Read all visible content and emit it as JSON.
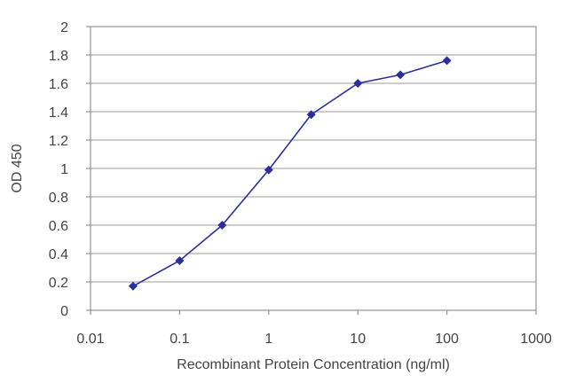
{
  "chart_data": {
    "type": "line",
    "x_scale": "log",
    "xlabel": "Recombinant Protein Concentration (ng/ml)",
    "ylabel": "OD 450",
    "xlim": [
      0.01,
      1000
    ],
    "ylim": [
      0,
      2
    ],
    "x_ticks": [
      0.01,
      0.1,
      1,
      10,
      100,
      1000
    ],
    "x_tick_labels": [
      "0.01",
      "0.1",
      "1",
      "10",
      "100",
      "1000"
    ],
    "y_ticks": [
      0,
      0.2,
      0.4,
      0.6,
      0.8,
      1,
      1.2,
      1.4,
      1.6,
      1.8,
      2
    ],
    "y_tick_labels": [
      "0",
      "0.2",
      "0.4",
      "0.6",
      "0.8",
      "1",
      "1.2",
      "1.4",
      "1.6",
      "1.8",
      "2"
    ],
    "grid": "horizontal",
    "legend": "none",
    "series": [
      {
        "color": "#2b2f9e",
        "x": [
          0.03,
          0.1,
          0.3,
          1,
          3,
          10,
          30,
          100
        ],
        "y": [
          0.17,
          0.35,
          0.6,
          0.99,
          1.38,
          1.6,
          1.66,
          1.76
        ]
      }
    ]
  }
}
